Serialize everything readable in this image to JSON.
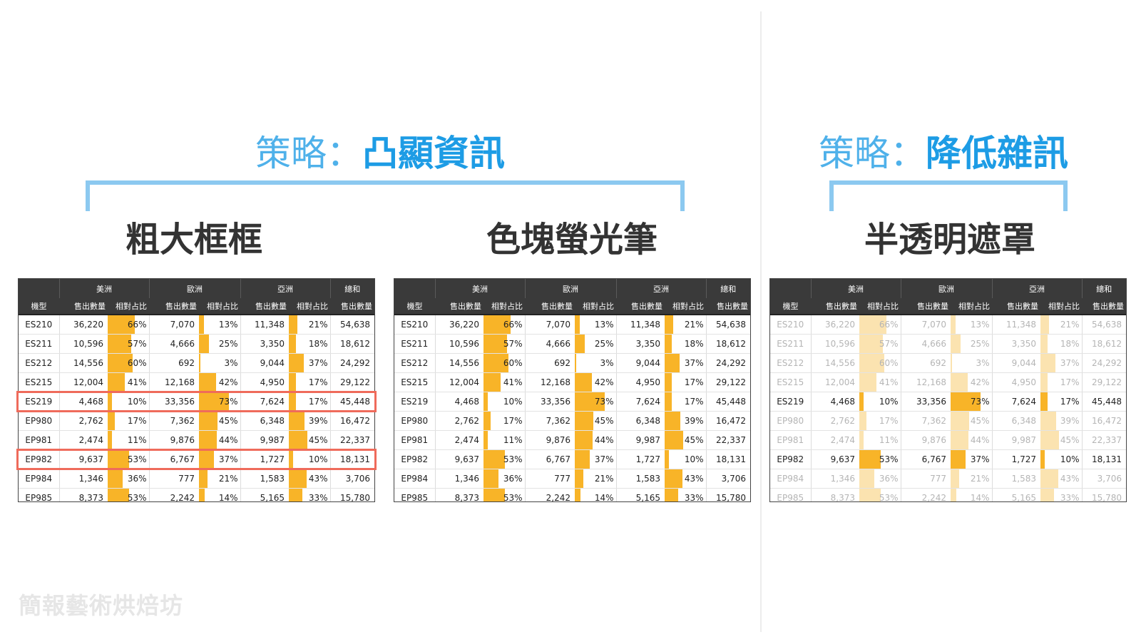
{
  "left_strategy": {
    "prefix": "策略：",
    "keyword": "凸顯資訊"
  },
  "right_strategy": {
    "prefix": "策略：",
    "keyword": "降低雜訊"
  },
  "methods": [
    "粗大框框",
    "色塊螢光筆",
    "半透明遮罩"
  ],
  "table": {
    "groups": [
      "美洲",
      "歐洲",
      "亞洲",
      "總和"
    ],
    "columns": [
      "機型",
      "售出數量",
      "相對占比",
      "售出數量",
      "相對占比",
      "售出數量",
      "相對占比",
      "售出數量"
    ],
    "rows": [
      {
        "model": "ES210",
        "am_qty": "36,220",
        "am_pct": "66%",
        "am_val": 66,
        "eu_qty": "7,070",
        "eu_pct": "13%",
        "eu_val": 13,
        "as_qty": "11,348",
        "as_pct": "21%",
        "as_val": 21,
        "total": "54,638"
      },
      {
        "model": "ES211",
        "am_qty": "10,596",
        "am_pct": "57%",
        "am_val": 57,
        "eu_qty": "4,666",
        "eu_pct": "25%",
        "eu_val": 25,
        "as_qty": "3,350",
        "as_pct": "18%",
        "as_val": 18,
        "total": "18,612"
      },
      {
        "model": "ES212",
        "am_qty": "14,556",
        "am_pct": "60%",
        "am_val": 60,
        "eu_qty": "692",
        "eu_pct": "3%",
        "eu_val": 3,
        "as_qty": "9,044",
        "as_pct": "37%",
        "as_val": 37,
        "total": "24,292"
      },
      {
        "model": "ES215",
        "am_qty": "12,004",
        "am_pct": "41%",
        "am_val": 41,
        "eu_qty": "12,168",
        "eu_pct": "42%",
        "eu_val": 42,
        "as_qty": "4,950",
        "as_pct": "17%",
        "as_val": 17,
        "total": "29,122"
      },
      {
        "model": "ES219",
        "am_qty": "4,468",
        "am_pct": "10%",
        "am_val": 10,
        "eu_qty": "33,356",
        "eu_pct": "73%",
        "eu_val": 73,
        "as_qty": "7,624",
        "as_pct": "17%",
        "as_val": 17,
        "total": "45,448"
      },
      {
        "model": "EP980",
        "am_qty": "2,762",
        "am_pct": "17%",
        "am_val": 17,
        "eu_qty": "7,362",
        "eu_pct": "45%",
        "eu_val": 45,
        "as_qty": "6,348",
        "as_pct": "39%",
        "as_val": 39,
        "total": "16,472"
      },
      {
        "model": "EP981",
        "am_qty": "2,474",
        "am_pct": "11%",
        "am_val": 11,
        "eu_qty": "9,876",
        "eu_pct": "44%",
        "eu_val": 44,
        "as_qty": "9,987",
        "as_pct": "45%",
        "as_val": 45,
        "total": "22,337"
      },
      {
        "model": "EP982",
        "am_qty": "9,637",
        "am_pct": "53%",
        "am_val": 53,
        "eu_qty": "6,767",
        "eu_pct": "37%",
        "eu_val": 37,
        "as_qty": "1,727",
        "as_pct": "10%",
        "as_val": 10,
        "total": "18,131"
      },
      {
        "model": "EP984",
        "am_qty": "1,346",
        "am_pct": "36%",
        "am_val": 36,
        "eu_qty": "777",
        "eu_pct": "21%",
        "eu_val": 21,
        "as_qty": "1,583",
        "as_pct": "43%",
        "as_val": 43,
        "total": "3,706"
      },
      {
        "model": "EP985",
        "am_qty": "8,373",
        "am_pct": "53%",
        "am_val": 53,
        "eu_qty": "2,242",
        "eu_pct": "14%",
        "eu_val": 14,
        "as_qty": "5,165",
        "as_pct": "33%",
        "as_val": 33,
        "total": "15,780"
      }
    ],
    "emphasized_models": [
      "ES219",
      "EP982"
    ]
  },
  "colors": {
    "bar": "#f8b428",
    "bar_muted": "#fbe3b0",
    "frame": "#ef6b5b",
    "header_bg": "#3a3a3a",
    "title_blue": "#1d9ce5",
    "bracket": "#8cc9f0"
  },
  "watermark": "簡報藝術烘焙坊"
}
